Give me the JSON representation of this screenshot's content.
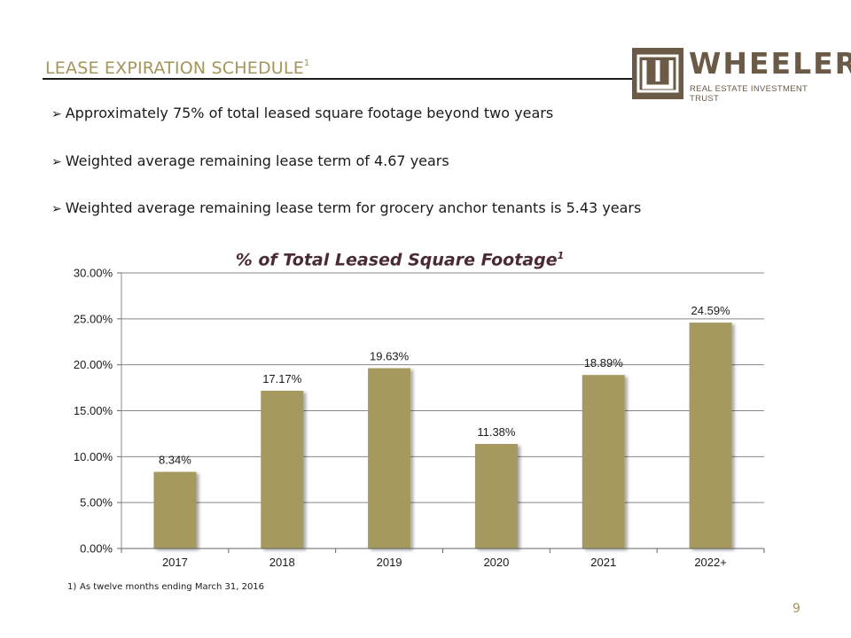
{
  "slide": {
    "title": "LEASE EXPIRATION SCHEDULE",
    "title_sup": "1",
    "page_number": "9"
  },
  "logo": {
    "name": "WHEELER",
    "tagline": "REAL ESTATE INVESTMENT TRUST",
    "brand_color": "#6b5a46"
  },
  "bullets": [
    "Approximately 75% of total leased square footage beyond two years",
    "Weighted average remaining lease term of 4.67 years",
    "Weighted average remaining lease term for grocery anchor tenants is 5.43 years"
  ],
  "footnote": {
    "number": "1)",
    "text": "As twelve months ending March 31, 2016"
  },
  "chart_data": {
    "type": "bar",
    "title": "% of Total Leased Square Footage",
    "title_sup": "1",
    "categories": [
      "2017",
      "2018",
      "2019",
      "2020",
      "2021",
      "2022+"
    ],
    "values": [
      8.34,
      17.17,
      19.63,
      11.38,
      18.89,
      24.59
    ],
    "data_labels": [
      "8.34%",
      "17.17%",
      "19.63%",
      "11.38%",
      "18.89%",
      "24.59%"
    ],
    "ylim": [
      0,
      30
    ],
    "yticks": [
      0,
      5,
      10,
      15,
      20,
      25,
      30
    ],
    "ytick_labels": [
      "0.00%",
      "5.00%",
      "10.00%",
      "15.00%",
      "20.00%",
      "25.00%",
      "30.00%"
    ],
    "xlabel": "",
    "ylabel": "",
    "grid": true,
    "bar_color": "#a6995e",
    "gridline_color": "#888888"
  }
}
